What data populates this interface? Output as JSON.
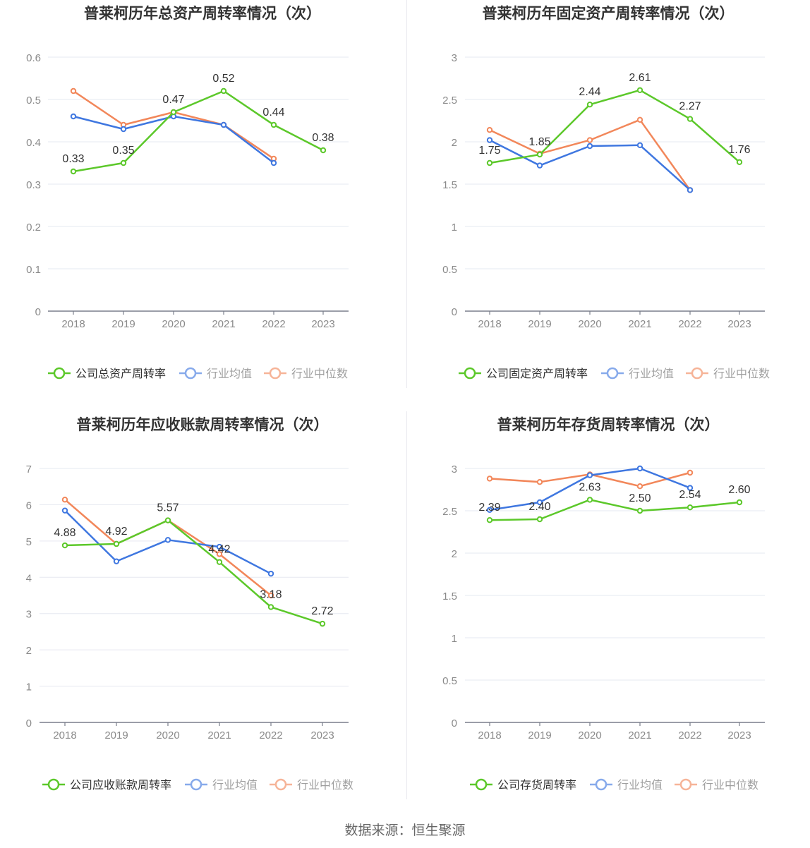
{
  "source": "数据来源：恒生聚源",
  "colors": {
    "company": "#5cc82a",
    "avg": "#3f77e0",
    "median": "#f2875a"
  },
  "chart_data": [
    {
      "type": "line",
      "title": "普莱柯历年总资产周转率情况（次）",
      "categories": [
        "2018",
        "2019",
        "2020",
        "2021",
        "2022",
        "2023"
      ],
      "ylim": [
        0,
        0.6
      ],
      "yticks": [
        "0",
        "0.1",
        "0.2",
        "0.3",
        "0.4",
        "0.5",
        "0.6"
      ],
      "grid": true,
      "legend": "bottom",
      "series": [
        {
          "name": "公司总资产周转率",
          "key": "company",
          "values": [
            0.33,
            0.35,
            0.47,
            0.52,
            0.44,
            0.38
          ],
          "labels": [
            "0.33",
            "0.35",
            "0.47",
            "0.52",
            "0.44",
            "0.38"
          ]
        },
        {
          "name": "行业均值",
          "key": "avg",
          "values": [
            0.46,
            0.43,
            0.46,
            0.44,
            0.35,
            null
          ]
        },
        {
          "name": "行业中位数",
          "key": "median",
          "values": [
            0.52,
            0.44,
            0.47,
            0.44,
            0.36,
            null
          ]
        }
      ]
    },
    {
      "type": "line",
      "title": "普莱柯历年固定资产周转率情况（次）",
      "categories": [
        "2018",
        "2019",
        "2020",
        "2021",
        "2022",
        "2023"
      ],
      "ylim": [
        0,
        3
      ],
      "yticks": [
        "0",
        "0.5",
        "1",
        "1.5",
        "2",
        "2.5",
        "3"
      ],
      "grid": true,
      "legend": "bottom",
      "series": [
        {
          "name": "公司固定资产周转率",
          "key": "company",
          "values": [
            1.75,
            1.85,
            2.44,
            2.61,
            2.27,
            1.76
          ],
          "labels": [
            "1.75",
            "1.85",
            "2.44",
            "2.61",
            "2.27",
            "1.76"
          ]
        },
        {
          "name": "行业均值",
          "key": "avg",
          "values": [
            2.02,
            1.72,
            1.95,
            1.96,
            1.43,
            null
          ]
        },
        {
          "name": "行业中位数",
          "key": "median",
          "values": [
            2.14,
            1.86,
            2.02,
            2.26,
            1.43,
            null
          ]
        }
      ]
    },
    {
      "type": "line",
      "title": "普莱柯历年应收账款周转率情况（次）",
      "categories": [
        "2018",
        "2019",
        "2020",
        "2021",
        "2022",
        "2023"
      ],
      "ylim": [
        0,
        7
      ],
      "yticks": [
        "0",
        "1",
        "2",
        "3",
        "4",
        "5",
        "6",
        "7"
      ],
      "grid": true,
      "legend": "bottom",
      "series": [
        {
          "name": "公司应收账款周转率",
          "key": "company",
          "values": [
            4.88,
            4.92,
            5.57,
            4.42,
            3.18,
            2.72
          ],
          "labels": [
            "4.88",
            "4.92",
            "5.57",
            "4.42",
            "3.18",
            "2.72"
          ]
        },
        {
          "name": "行业均值",
          "key": "avg",
          "values": [
            5.84,
            4.44,
            5.03,
            4.84,
            4.1,
            null
          ]
        },
        {
          "name": "行业中位数",
          "key": "median",
          "values": [
            6.14,
            4.92,
            5.57,
            4.64,
            3.5,
            null
          ]
        }
      ]
    },
    {
      "type": "line",
      "title": "普莱柯历年存货周转率情况（次）",
      "categories": [
        "2018",
        "2019",
        "2020",
        "2021",
        "2022",
        "2023"
      ],
      "ylim": [
        0,
        3
      ],
      "yticks": [
        "0",
        "0.5",
        "1",
        "1.5",
        "2",
        "2.5",
        "3"
      ],
      "grid": true,
      "legend": "bottom",
      "series": [
        {
          "name": "公司存货周转率",
          "key": "company",
          "values": [
            2.39,
            2.4,
            2.63,
            2.5,
            2.54,
            2.6
          ],
          "labels": [
            "2.39",
            "2.40",
            "2.63",
            "2.50",
            "2.54",
            "2.60"
          ]
        },
        {
          "name": "行业均值",
          "key": "avg",
          "values": [
            2.51,
            2.6,
            2.92,
            3.0,
            2.77,
            null
          ]
        },
        {
          "name": "行业中位数",
          "key": "median",
          "values": [
            2.88,
            2.84,
            2.93,
            2.79,
            2.95,
            null
          ]
        }
      ]
    }
  ]
}
